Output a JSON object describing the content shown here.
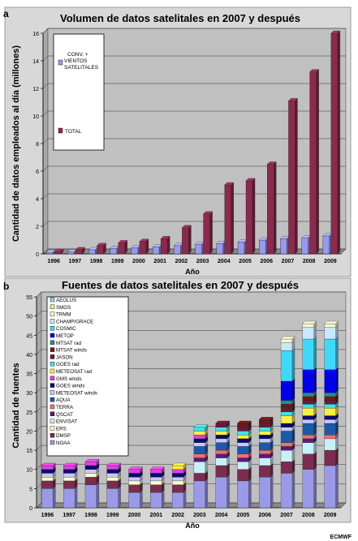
{
  "panel_a_label": "a",
  "panel_b_label": "b",
  "credit": "ECMWF",
  "colors": {
    "conv": "#9999ee",
    "total": "#8b2a4f",
    "plot_bg": "#c0c0c0",
    "page_bg": "#ffffff"
  },
  "chart_data": [
    {
      "type": "bar",
      "title": "Volumen de datos satelitales en 2007 y después",
      "xlabel": "Año",
      "ylabel": "Cantidad de datos empleados al día (millones)",
      "ylim": [
        0,
        16
      ],
      "yticks": [
        "0",
        "2",
        "4",
        "6",
        "8",
        "10",
        "12",
        "14",
        "16"
      ],
      "categories": [
        "1996",
        "1997",
        "1998",
        "1999",
        "2000",
        "2001",
        "2002",
        "2003",
        "2004",
        "2005",
        "2006",
        "2007",
        "2008",
        "2009"
      ],
      "legend_position": "top-left",
      "grid": true,
      "series": [
        {
          "name": "CONV. + VIENTOS SATELITALES",
          "color": "#9999ee",
          "values": [
            0.1,
            0.15,
            0.3,
            0.4,
            0.45,
            0.5,
            0.6,
            0.7,
            0.75,
            0.85,
            1.0,
            1.1,
            1.15,
            1.3
          ]
        },
        {
          "name": "TOTAL",
          "color": "#8b2a4f",
          "values": [
            0.15,
            0.3,
            0.6,
            0.8,
            0.9,
            1.1,
            1.9,
            2.9,
            5.0,
            5.3,
            6.5,
            11.1,
            13.2,
            16.0
          ]
        }
      ]
    },
    {
      "type": "bar",
      "stacked": true,
      "title": "Fuentes de datos satelitales en 2007 y después",
      "xlabel": "Año",
      "ylabel": "Cantidad de fuentes",
      "ylim": [
        0,
        55
      ],
      "yticks": [
        "0",
        "5",
        "10",
        "15",
        "20",
        "25",
        "30",
        "35",
        "40",
        "45",
        "50",
        "55"
      ],
      "categories": [
        "1996",
        "1997",
        "1998",
        "1999",
        "2000",
        "2001",
        "2002",
        "2003",
        "2004",
        "2005",
        "2006",
        "2007",
        "2008",
        "2009"
      ],
      "legend_position": "top-left",
      "grid": true,
      "series": [
        {
          "name": "NOAA",
          "color": "#9a9ae8",
          "values": [
            5,
            5,
            6,
            5,
            4,
            4,
            4,
            7,
            8,
            7,
            8,
            9,
            10,
            11
          ]
        },
        {
          "name": "DMSP",
          "color": "#7a2d4e",
          "values": [
            2,
            2,
            2,
            2,
            2,
            2,
            2,
            2,
            3,
            3,
            3,
            3,
            4,
            4
          ]
        },
        {
          "name": "ERS",
          "color": "#fefec8",
          "values": [
            1,
            1,
            1,
            1,
            1,
            1,
            1,
            0,
            0,
            0,
            0,
            0,
            0,
            0
          ]
        },
        {
          "name": "ENVISAT",
          "color": "#c8f0f8",
          "values": [
            0,
            0,
            0,
            0,
            0,
            0,
            0,
            3,
            2,
            2,
            2,
            3,
            3,
            3
          ]
        },
        {
          "name": "QSCAT",
          "color": "#5a1a7a",
          "values": [
            0,
            0,
            0,
            0,
            0,
            0,
            0,
            1,
            1,
            1,
            1,
            1,
            1,
            0
          ]
        },
        {
          "name": "TERRA",
          "color": "#f07070",
          "values": [
            0,
            0,
            0,
            0,
            0,
            0,
            0,
            1,
            1,
            1,
            1,
            1,
            1,
            1
          ]
        },
        {
          "name": "AQUA",
          "color": "#1c5aa8",
          "values": [
            0,
            0,
            0,
            0,
            0,
            0,
            0,
            2,
            2,
            2,
            2,
            3,
            3,
            3
          ]
        },
        {
          "name": "METEOSAT winds",
          "color": "#c8c8ff",
          "values": [
            1,
            1,
            1,
            1,
            1,
            1,
            1,
            1,
            1,
            1,
            1,
            1,
            1,
            1
          ]
        },
        {
          "name": "GOES winds",
          "color": "#0a0a6e",
          "values": [
            1,
            1,
            1,
            1,
            1,
            1,
            1,
            1,
            1,
            1,
            1,
            1,
            1,
            1
          ]
        },
        {
          "name": "GMS winds",
          "color": "#e040e0",
          "values": [
            1,
            1,
            1,
            1,
            1,
            1,
            1,
            1,
            0,
            0,
            0,
            0,
            0,
            0
          ]
        },
        {
          "name": "METEOSAT rad",
          "color": "#f8f040",
          "values": [
            0,
            0,
            0,
            0,
            0,
            0,
            1,
            1,
            1,
            1,
            1,
            2,
            2,
            2
          ]
        },
        {
          "name": "GOES rad",
          "color": "#40e0f0",
          "values": [
            0,
            0,
            0,
            0,
            0,
            0,
            0,
            1,
            1,
            1,
            1,
            1,
            1,
            1
          ]
        },
        {
          "name": "JASON",
          "color": "#6a1a3a",
          "values": [
            0,
            0,
            0,
            0,
            0,
            0,
            0,
            0,
            1,
            1,
            1,
            1,
            1,
            1
          ]
        },
        {
          "name": "MTSAT winds",
          "color": "#6a1a1a",
          "values": [
            0,
            0,
            0,
            0,
            0,
            0,
            0,
            0,
            0,
            1,
            1,
            1,
            1,
            1
          ]
        },
        {
          "name": "MTSAT rad",
          "color": "#2a8a8a",
          "values": [
            0,
            0,
            0,
            0,
            0,
            0,
            0,
            0,
            0,
            0,
            0,
            1,
            1,
            1
          ]
        },
        {
          "name": "METOP",
          "color": "#0000e8",
          "values": [
            0,
            0,
            0,
            0,
            0,
            0,
            0,
            0,
            0,
            0,
            0,
            5,
            6,
            6
          ]
        },
        {
          "name": "COSMIC",
          "color": "#40d8f8",
          "values": [
            0,
            0,
            0,
            0,
            0,
            0,
            0,
            0,
            0,
            0,
            0,
            8,
            8,
            8
          ]
        },
        {
          "name": "CHAMP/GRACE",
          "color": "#c8e8ff",
          "values": [
            0,
            0,
            0,
            0,
            0,
            0,
            0,
            0,
            0,
            0,
            0,
            2,
            3,
            3
          ]
        },
        {
          "name": "TRMM",
          "color": "#f8f8c8",
          "values": [
            0,
            0,
            0,
            0,
            0,
            0,
            0,
            0,
            0,
            0,
            0,
            1,
            1,
            1
          ]
        },
        {
          "name": "SMOS",
          "color": "#e8e8a0",
          "values": [
            0,
            0,
            0,
            0,
            0,
            0,
            0,
            0,
            0,
            0,
            0,
            0,
            0,
            0
          ]
        },
        {
          "name": "AEOLUS",
          "color": "#a0c8f0",
          "values": [
            0,
            0,
            0,
            0,
            0,
            0,
            0,
            0,
            0,
            0,
            0,
            0,
            0,
            0
          ]
        }
      ]
    }
  ]
}
